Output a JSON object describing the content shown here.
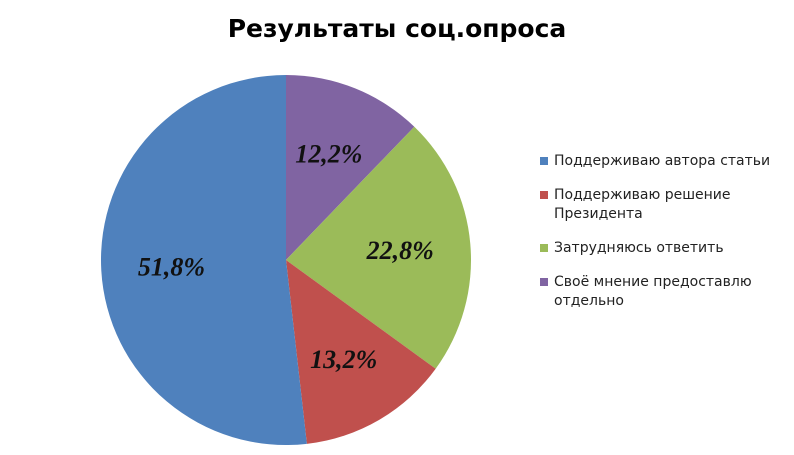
{
  "chart_data": {
    "type": "pie",
    "title": "Результаты соц.опроса",
    "slices": [
      {
        "label": "Поддерживаю автора статьи",
        "value": 51.8,
        "display": "51,8%",
        "color": "#4F81BD"
      },
      {
        "label": "Поддерживаю решение Президента",
        "value": 13.2,
        "display": "13,2%",
        "color": "#C0504D"
      },
      {
        "label": "Затрудняюсь ответить",
        "value": 22.8,
        "display": "22,8%",
        "color": "#9BBB59"
      },
      {
        "label": "Своё мнение предоставлю отдельно",
        "value": 12.2,
        "display": "12,2%",
        "color": "#8064A2"
      }
    ],
    "legend_position": "right"
  }
}
